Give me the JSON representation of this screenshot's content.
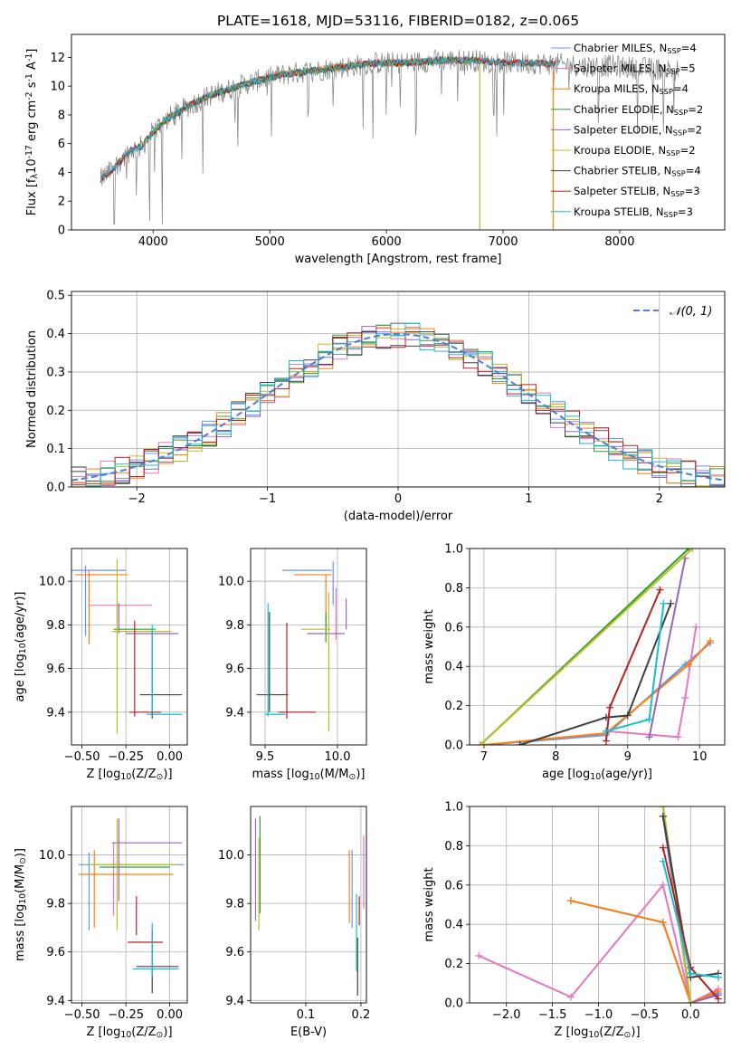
{
  "colors": {
    "c_miles": "#6495ED",
    "s_miles": "#E377C2",
    "k_miles": "#FF7F0E",
    "c_elodie": "#2CA02C",
    "s_elodie": "#9467BD",
    "k_elodie": "#BCBD22",
    "c_stelib": "#404040",
    "s_stelib": "#B22222",
    "k_stelib": "#17BECF"
  },
  "legend_series": [
    {
      "label": "Chabrier MILES, N$_{SSP}$=4",
      "color": "c_miles"
    },
    {
      "label": "Salpeter MILES, N$_{SSP}$=5",
      "color": "s_miles"
    },
    {
      "label": "Kroupa MILES, N$_{SSP}$=4",
      "color": "k_miles"
    },
    {
      "label": "Chabrier ELODIE, N$_{SSP}$=2",
      "color": "c_elodie"
    },
    {
      "label": "Salpeter ELODIE, N$_{SSP}$=2",
      "color": "s_elodie"
    },
    {
      "label": "Kroupa ELODIE, N$_{SSP}$=2",
      "color": "k_elodie"
    },
    {
      "label": "Chabrier STELIB, N$_{SSP}$=4",
      "color": "c_stelib"
    },
    {
      "label": "Salpeter STELIB, N$_{SSP}$=3",
      "color": "s_stelib"
    },
    {
      "label": "Kroupa STELIB, N$_{SSP}$=3",
      "color": "k_stelib"
    }
  ],
  "chart_data": [
    {
      "id": "spectrum",
      "type": "line",
      "title": "PLATE=1618, MJD=53116, FIBERID=0182, z=0.065",
      "xlabel": "wavelength [Angstrom, rest frame]",
      "ylabel": "Flux [f$_\\lambda$10$^{-17}$ erg cm$^{-2}$ s$^{-1}$ A$^{-1}$]",
      "xlim": [
        3300,
        8900
      ],
      "ylim": [
        0,
        13.6
      ],
      "xticks": [
        4000,
        5000,
        6000,
        7000,
        8000
      ],
      "yticks": [
        0,
        2,
        4,
        6,
        8,
        10,
        12
      ],
      "legend_position": "upper right",
      "continuum": {
        "x": [
          3550,
          3650,
          3800,
          3900,
          4000,
          4100,
          4300,
          4500,
          4700,
          4900,
          5100,
          5300,
          5500,
          5700,
          5900,
          6100,
          6300,
          6500,
          6700,
          6900,
          7100,
          7300,
          7500,
          7700,
          7900,
          8100,
          8300,
          8500
        ],
        "y": [
          3.5,
          4.2,
          5.5,
          5.8,
          6.8,
          7.6,
          8.6,
          9.4,
          9.9,
          10.4,
          10.8,
          11.0,
          11.2,
          11.4,
          11.6,
          11.6,
          11.7,
          11.8,
          11.8,
          11.7,
          11.6,
          11.6,
          11.5,
          11.4,
          11.4,
          11.3,
          11.2,
          11.1
        ]
      }
    },
    {
      "id": "residuals",
      "type": "histogram",
      "xlabel": "(data-model)/error",
      "ylabel": "Normed distribution",
      "xlim": [
        -2.5,
        2.5
      ],
      "ylim": [
        0,
        0.51
      ],
      "xticks": [
        -2,
        -1,
        0,
        1,
        2
      ],
      "yticks": [
        0.0,
        0.1,
        0.2,
        0.3,
        0.4,
        0.5
      ],
      "grid": true,
      "legend_position": "upper right",
      "gaussian_label": "$\\mathcal{N}(0,1)$",
      "bin_width": 0.1111
    },
    {
      "id": "age_vs_Z",
      "type": "errorbar",
      "xlabel": "Z [log$_{10}$(Z/Z$_\\odot$)]",
      "ylabel": "age  [log$_{10}$(age/yr)]",
      "xlim": [
        -0.56,
        0.1
      ],
      "ylim": [
        9.25,
        10.15
      ],
      "xticks": [
        -0.5,
        -0.25,
        0.0
      ],
      "yticks": [
        9.4,
        9.6,
        9.8,
        10.0
      ],
      "grid": true,
      "points": [
        {
          "color": "c_miles",
          "x": -0.43,
          "xerr": 0.18,
          "y": 10.05,
          "yerr": 0.0
        },
        {
          "color": "c_miles",
          "x": -0.48,
          "xerr": 0.0,
          "y": 9.91,
          "yerr": 0.16
        },
        {
          "color": "s_miles",
          "x": -0.28,
          "xerr": 0.18,
          "y": 9.89,
          "yerr": 0.0
        },
        {
          "color": "s_miles",
          "x": -0.3,
          "xerr": 0.0,
          "y": 9.85,
          "yerr": 0.05
        },
        {
          "color": "k_miles",
          "x": -0.46,
          "xerr": 0.0,
          "y": 9.88,
          "yerr": 0.17
        },
        {
          "color": "k_miles",
          "x": -0.39,
          "xerr": 0.15,
          "y": 10.03,
          "yerr": 0.0
        },
        {
          "color": "c_elodie",
          "x": -0.2,
          "xerr": 0.12,
          "y": 9.78,
          "yerr": 0.0
        },
        {
          "color": "s_elodie",
          "x": -0.1,
          "xerr": 0.15,
          "y": 9.76,
          "yerr": 0.0
        },
        {
          "color": "s_elodie",
          "x": -0.29,
          "xerr": 0.0,
          "y": 9.83,
          "yerr": 0.07
        },
        {
          "color": "k_elodie",
          "x": -0.16,
          "xerr": 0.17,
          "y": 9.77,
          "yerr": 0.0
        },
        {
          "color": "k_elodie",
          "x": -0.3,
          "xerr": 0.0,
          "y": 9.7,
          "yerr": 0.4
        },
        {
          "color": "c_stelib",
          "x": -0.1,
          "xerr": 0.0,
          "y": 9.57,
          "yerr": 0.2
        },
        {
          "color": "c_stelib",
          "x": -0.05,
          "xerr": 0.12,
          "y": 9.48,
          "yerr": 0.0
        },
        {
          "color": "s_stelib",
          "x": -0.2,
          "xerr": 0.0,
          "y": 9.6,
          "yerr": 0.22
        },
        {
          "color": "s_stelib",
          "x": -0.14,
          "xerr": 0.09,
          "y": 9.4,
          "yerr": 0.0
        },
        {
          "color": "k_stelib",
          "x": -0.1,
          "xerr": 0.0,
          "y": 9.6,
          "yerr": 0.2
        },
        {
          "color": "k_stelib",
          "x": -0.03,
          "xerr": 0.1,
          "y": 9.39,
          "yerr": 0.0
        }
      ]
    },
    {
      "id": "age_vs_mass",
      "type": "errorbar",
      "xlabel": "mass [log$_{10}$(M/M$_\\odot$)]",
      "ylabel": "",
      "xlim": [
        9.4,
        10.2
      ],
      "ylim": [
        9.25,
        10.15
      ],
      "xticks": [
        9.5,
        10.0
      ],
      "yticks": [
        9.4,
        9.6,
        9.8,
        10.0
      ],
      "grid": true,
      "points": [
        {
          "color": "c_miles",
          "x": 9.79,
          "xerr": 0.17,
          "y": 10.05,
          "yerr": 0.0
        },
        {
          "color": "c_miles",
          "x": 9.97,
          "xerr": 0.0,
          "y": 9.99,
          "yerr": 0.1
        },
        {
          "color": "s_miles",
          "x": 9.99,
          "xerr": 0.0,
          "y": 9.85,
          "yerr": 0.12
        },
        {
          "color": "k_miles",
          "x": 9.83,
          "xerr": 0.13,
          "y": 10.03,
          "yerr": 0.0
        },
        {
          "color": "k_miles",
          "x": 9.92,
          "xerr": 0.0,
          "y": 9.9,
          "yerr": 0.13
        },
        {
          "color": "c_elodie",
          "x": 9.92,
          "xerr": 0.0,
          "y": 9.79,
          "yerr": 0.07
        },
        {
          "color": "s_elodie",
          "x": 9.92,
          "xerr": 0.13,
          "y": 9.76,
          "yerr": 0.0
        },
        {
          "color": "s_elodie",
          "x": 10.06,
          "xerr": 0.0,
          "y": 9.85,
          "yerr": 0.07
        },
        {
          "color": "k_elodie",
          "x": 9.85,
          "xerr": 0.1,
          "y": 9.78,
          "yerr": 0.0
        },
        {
          "color": "k_elodie",
          "x": 9.94,
          "xerr": 0.0,
          "y": 9.63,
          "yerr": 0.32
        },
        {
          "color": "c_stelib",
          "x": 9.55,
          "xerr": 0.11,
          "y": 9.48,
          "yerr": 0.0
        },
        {
          "color": "c_stelib",
          "x": 9.53,
          "xerr": 0.0,
          "y": 9.63,
          "yerr": 0.23
        },
        {
          "color": "s_stelib",
          "x": 9.72,
          "xerr": 0.13,
          "y": 9.4,
          "yerr": 0.0
        },
        {
          "color": "s_stelib",
          "x": 9.65,
          "xerr": 0.0,
          "y": 9.59,
          "yerr": 0.22
        },
        {
          "color": "k_stelib",
          "x": 9.52,
          "xerr": 0.0,
          "y": 9.64,
          "yerr": 0.26
        },
        {
          "color": "k_stelib",
          "x": 9.57,
          "xerr": 0.07,
          "y": 9.39,
          "yerr": 0.0
        }
      ]
    },
    {
      "id": "weight_vs_age",
      "type": "line",
      "xlabel": "age  [log$_{10}$(age/yr)]",
      "ylabel": "mass weight",
      "xlim": [
        6.8,
        10.35
      ],
      "ylim": [
        0,
        1.0
      ],
      "xticks": [
        7,
        8,
        9,
        10
      ],
      "yticks": [
        0.0,
        0.2,
        0.4,
        0.6,
        0.8,
        1.0
      ],
      "grid": true,
      "series": [
        {
          "color": "c_miles",
          "x": [
            7.0,
            8.7,
            9.8,
            10.15
          ],
          "y": [
            0.0,
            0.05,
            0.41,
            0.52
          ]
        },
        {
          "color": "s_miles",
          "x": [
            8.7,
            9.7,
            9.8,
            9.95
          ],
          "y": [
            0.07,
            0.04,
            0.24,
            0.6
          ]
        },
        {
          "color": "k_miles",
          "x": [
            7.0,
            8.7,
            9.85,
            10.15
          ],
          "y": [
            0.0,
            0.06,
            0.41,
            0.53
          ]
        },
        {
          "color": "c_elodie",
          "x": [
            6.95,
            9.85
          ],
          "y": [
            0.0,
            1.0
          ]
        },
        {
          "color": "s_elodie",
          "x": [
            9.3,
            9.8
          ],
          "y": [
            0.04,
            0.95
          ]
        },
        {
          "color": "k_elodie",
          "x": [
            6.95,
            9.9
          ],
          "y": [
            0.0,
            1.0
          ]
        },
        {
          "color": "c_stelib",
          "x": [
            7.5,
            8.7,
            9.0,
            9.6
          ],
          "y": [
            0.0,
            0.14,
            0.15,
            0.72
          ]
        },
        {
          "color": "s_stelib",
          "x": [
            8.7,
            8.75,
            9.45
          ],
          "y": [
            0.02,
            0.19,
            0.79
          ]
        },
        {
          "color": "k_stelib",
          "x": [
            8.7,
            9.3,
            9.5
          ],
          "y": [
            0.07,
            0.13,
            0.72
          ]
        }
      ]
    },
    {
      "id": "mass_vs_Z",
      "type": "errorbar",
      "xlabel": "Z [log$_{10}$(Z/Z$_\\odot$)]",
      "ylabel": "mass [log$_{10}$(M/M$_\\odot$)]",
      "xlim": [
        -0.56,
        0.1
      ],
      "ylim": [
        9.39,
        10.2
      ],
      "xticks": [
        -0.5,
        -0.25,
        0.0
      ],
      "yticks": [
        9.4,
        9.6,
        9.8,
        10.0
      ],
      "grid": true,
      "points": [
        {
          "color": "c_miles",
          "x": -0.22,
          "xerr": 0.3,
          "y": 9.96,
          "yerr": 0.0
        },
        {
          "color": "c_miles",
          "x": -0.46,
          "xerr": 0.0,
          "y": 9.85,
          "yerr": 0.16
        },
        {
          "color": "s_miles",
          "x": -0.32,
          "xerr": 0.0,
          "y": 9.9,
          "yerr": 0.15
        },
        {
          "color": "k_miles",
          "x": -0.25,
          "xerr": 0.27,
          "y": 9.92,
          "yerr": 0.0
        },
        {
          "color": "k_miles",
          "x": -0.43,
          "xerr": 0.0,
          "y": 9.86,
          "yerr": 0.16
        },
        {
          "color": "c_elodie",
          "x": -0.2,
          "xerr": 0.2,
          "y": 9.95,
          "yerr": 0.0
        },
        {
          "color": "s_elodie",
          "x": -0.13,
          "xerr": 0.2,
          "y": 10.05,
          "yerr": 0.0
        },
        {
          "color": "s_elodie",
          "x": -0.29,
          "xerr": 0.0,
          "y": 9.98,
          "yerr": 0.17
        },
        {
          "color": "k_elodie",
          "x": -0.21,
          "xerr": 0.25,
          "y": 9.96,
          "yerr": 0.0
        },
        {
          "color": "k_elodie",
          "x": -0.3,
          "xerr": 0.0,
          "y": 9.92,
          "yerr": 0.23
        },
        {
          "color": "c_stelib",
          "x": -0.07,
          "xerr": 0.12,
          "y": 9.54,
          "yerr": 0.0
        },
        {
          "color": "c_stelib",
          "x": -0.1,
          "xerr": 0.0,
          "y": 9.56,
          "yerr": 0.13
        },
        {
          "color": "s_stelib",
          "x": -0.14,
          "xerr": 0.1,
          "y": 9.64,
          "yerr": 0.0
        },
        {
          "color": "s_stelib",
          "x": -0.19,
          "xerr": 0.0,
          "y": 9.75,
          "yerr": 0.08
        },
        {
          "color": "k_stelib",
          "x": -0.1,
          "xerr": 0.0,
          "y": 9.61,
          "yerr": 0.11
        },
        {
          "color": "k_stelib",
          "x": -0.08,
          "xerr": 0.13,
          "y": 9.53,
          "yerr": 0.0
        }
      ]
    },
    {
      "id": "mass_vs_ebv",
      "type": "errorbar",
      "xlabel": "E(B-V)",
      "ylabel": "",
      "xlim": [
        0.0,
        0.21
      ],
      "ylim": [
        9.39,
        10.2
      ],
      "xticks": [
        0.1,
        0.2
      ],
      "yticks": [
        9.4,
        9.6,
        9.8,
        10.0
      ],
      "grid": true,
      "points": [
        {
          "color": "c_miles",
          "x": 0.184,
          "xerr": 0.0,
          "y": 9.86,
          "yerr": 0.16
        },
        {
          "color": "s_miles",
          "x": 0.205,
          "xerr": 0.0,
          "y": 9.93,
          "yerr": 0.15
        },
        {
          "color": "k_miles",
          "x": 0.179,
          "xerr": 0.0,
          "y": 9.87,
          "yerr": 0.15
        },
        {
          "color": "c_elodie",
          "x": 0.017,
          "xerr": 0.0,
          "y": 9.96,
          "yerr": 0.2
        },
        {
          "color": "s_elodie",
          "x": 0.009,
          "xerr": 0.0,
          "y": 9.94,
          "yerr": 0.21
        },
        {
          "color": "k_elodie",
          "x": 0.015,
          "xerr": 0.0,
          "y": 9.88,
          "yerr": 0.19
        },
        {
          "color": "c_stelib",
          "x": 0.194,
          "xerr": 0.0,
          "y": 9.54,
          "yerr": 0.12
        },
        {
          "color": "s_stelib",
          "x": 0.197,
          "xerr": 0.0,
          "y": 9.77,
          "yerr": 0.06
        },
        {
          "color": "k_stelib",
          "x": 0.192,
          "xerr": 0.0,
          "y": 9.68,
          "yerr": 0.16
        }
      ]
    },
    {
      "id": "weight_vs_Z",
      "type": "line",
      "xlabel": "Z [log$_{10}$(Z/Z$_\\odot$)]",
      "ylabel": "mass weight",
      "xlim": [
        -2.4,
        0.37
      ],
      "ylim": [
        0,
        1.0
      ],
      "xticks": [
        -2.0,
        -1.5,
        -1.0,
        -0.5,
        0.0
      ],
      "yticks": [
        0.0,
        0.2,
        0.4,
        0.6,
        0.8,
        1.0
      ],
      "grid": true,
      "series": [
        {
          "color": "c_miles",
          "x": [
            -1.3,
            -0.3,
            0.0,
            0.3
          ],
          "y": [
            0.52,
            0.41,
            0.0,
            0.05
          ]
        },
        {
          "color": "s_miles",
          "x": [
            -2.3,
            -1.3,
            -0.3,
            0.0,
            0.3
          ],
          "y": [
            0.24,
            0.03,
            0.6,
            0.0,
            0.07
          ]
        },
        {
          "color": "k_miles",
          "x": [
            -1.3,
            -0.3,
            0.0,
            0.3
          ],
          "y": [
            0.52,
            0.41,
            0.0,
            0.06
          ]
        },
        {
          "color": "c_elodie",
          "x": [
            -0.3,
            0.0
          ],
          "y": [
            1.0,
            0.0
          ]
        },
        {
          "color": "s_elodie",
          "x": [
            -0.3,
            0.0,
            0.3
          ],
          "y": [
            0.95,
            0.0,
            0.04
          ]
        },
        {
          "color": "k_elodie",
          "x": [
            -0.3,
            0.0
          ],
          "y": [
            1.0,
            0.0
          ]
        },
        {
          "color": "c_stelib",
          "x": [
            -0.3,
            0.0,
            0.3
          ],
          "y": [
            0.95,
            0.13,
            0.15
          ]
        },
        {
          "color": "s_stelib",
          "x": [
            -0.3,
            0.0,
            0.3
          ],
          "y": [
            0.79,
            0.18,
            0.02
          ]
        },
        {
          "color": "k_stelib",
          "x": [
            -0.3,
            0.0,
            0.3
          ],
          "y": [
            0.72,
            0.15,
            0.13
          ]
        }
      ]
    }
  ]
}
